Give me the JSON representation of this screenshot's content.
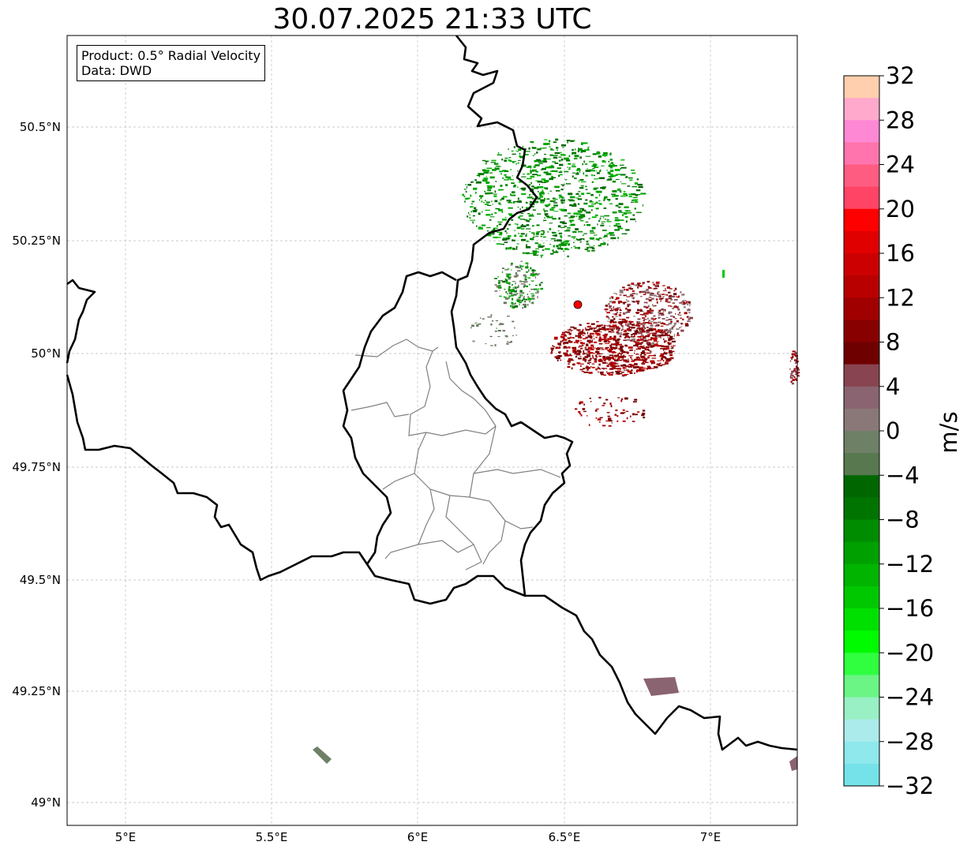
{
  "title": "30.07.2025 21:33 UTC",
  "info_box": {
    "product": "Product: 0.5° Radial Velocity",
    "data": "Data: DWD"
  },
  "map": {
    "lon_ticks": [
      "5°E",
      "5.5°E",
      "6°E",
      "6.5°E",
      "7°E"
    ],
    "lat_ticks": [
      "50.5°N",
      "50.25°N",
      "50°N",
      "49.75°N",
      "49.5°N",
      "49.25°N",
      "49°N"
    ],
    "radar_site_color": "#ff0000",
    "border_color": "#000000",
    "district_color": "#808080",
    "grid": true
  },
  "colorbar": {
    "label": "m/s",
    "ticks": [
      "32",
      "28",
      "24",
      "20",
      "16",
      "12",
      "8",
      "4",
      "0",
      "−4",
      "−8",
      "−12",
      "−16",
      "−20",
      "−24",
      "−28",
      "−32"
    ],
    "range": [
      -32,
      32
    ],
    "colors": [
      "#ffcfae",
      "#ffaacc",
      "#ff88d4",
      "#ff74ac",
      "#ff5c82",
      "#ff4466",
      "#ff0000",
      "#e00000",
      "#cc0000",
      "#b80000",
      "#a00000",
      "#880000",
      "#6e0000",
      "#884450",
      "#8a6470",
      "#8a7878",
      "#6e8066",
      "#587850",
      "#006600",
      "#007400",
      "#008c00",
      "#00a000",
      "#00b400",
      "#00c800",
      "#00e000",
      "#00fa00",
      "#30ff40",
      "#6af584",
      "#98f0c4",
      "#acebec",
      "#8ee8ec",
      "#74e2e8"
    ]
  }
}
